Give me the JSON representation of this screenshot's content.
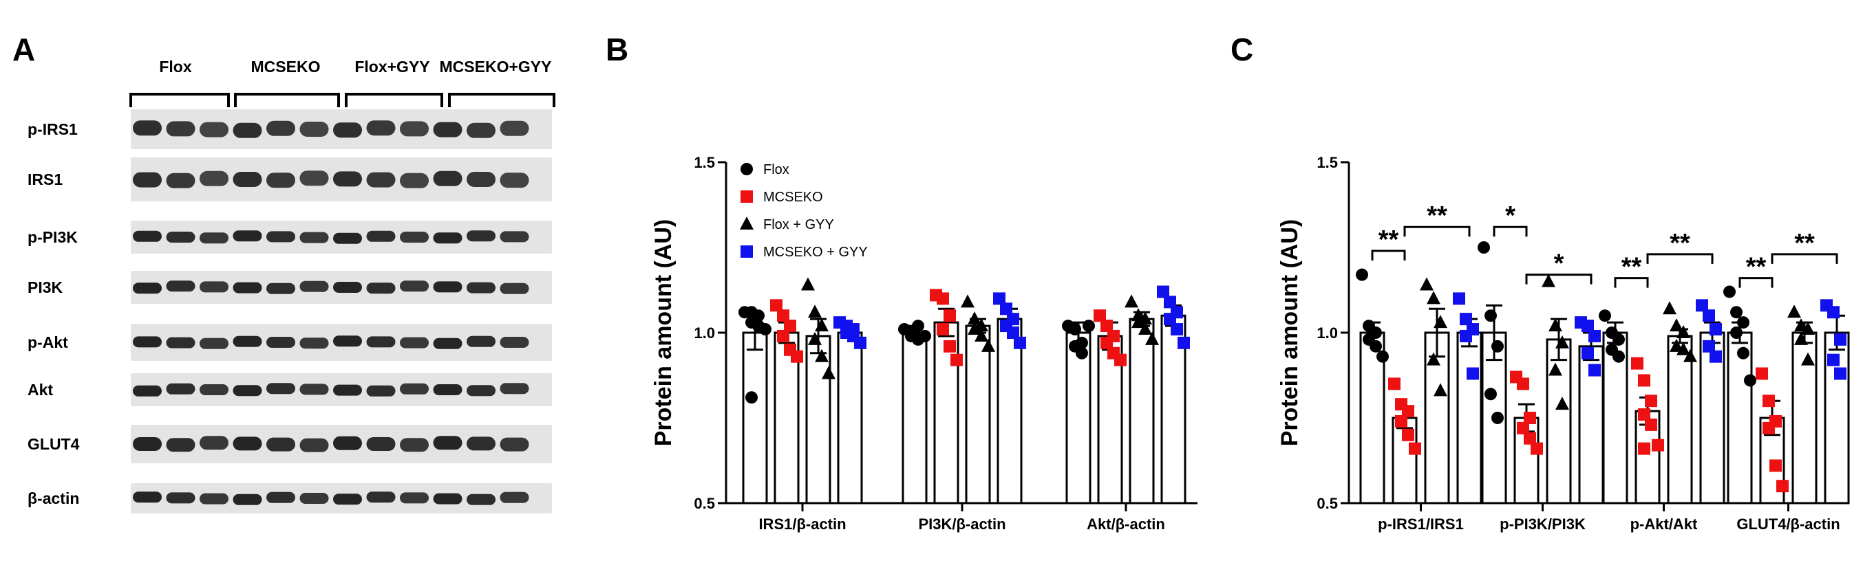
{
  "panel_a": {
    "letter": "A",
    "groups": [
      "Flox",
      "MCSEKO",
      "Flox+GYY",
      "MCSEKO+GYY"
    ],
    "rows": [
      {
        "label": "p-IRS1",
        "icon": "western-blot-band"
      },
      {
        "label": "IRS1",
        "icon": "western-blot-band"
      },
      {
        "label": "p-PI3K",
        "icon": "western-blot-band"
      },
      {
        "label": "PI3K",
        "icon": "western-blot-band"
      },
      {
        "label": "p-Akt",
        "icon": "western-blot-band"
      },
      {
        "label": "Akt",
        "icon": "western-blot-band"
      },
      {
        "label": "GLUT4",
        "icon": "western-blot-band"
      },
      {
        "label": "β-actin",
        "icon": "western-blot-band"
      }
    ]
  },
  "chart_data": [
    {
      "panel": "B",
      "type": "bar",
      "ylabel": "Protein amount (AU)",
      "ylim": [
        0.5,
        1.5
      ],
      "yticks": [
        "0.5",
        "1.0",
        "1.5"
      ],
      "categories": [
        "IRS1/β-actin",
        "PI3K/β-actin",
        "Akt/β-actin"
      ],
      "legend": {
        "placement": "top-left",
        "entries": [
          {
            "name": "Flox",
            "marker": "circle",
            "color": "#000000"
          },
          {
            "name": "MCSEKO",
            "marker": "square",
            "color": "#ee1111"
          },
          {
            "name": "Flox + GYY",
            "marker": "triangle",
            "color": "#000000"
          },
          {
            "name": "MCSEKO + GYY",
            "marker": "square",
            "color": "#1111ee"
          }
        ]
      },
      "series": [
        {
          "name": "Flox",
          "marker": "circle",
          "color": "#000000",
          "values": [
            1.0,
            1.0,
            1.0
          ],
          "sem": [
            0.05,
            0.02,
            0.03
          ],
          "points": [
            [
              1.06,
              1.06,
              1.05,
              1.03,
              1.02,
              1.01,
              0.81
            ],
            [
              1.01,
              1.0,
              0.98,
              0.99,
              1.02,
              0.99
            ],
            [
              1.02,
              1.01,
              0.97,
              0.96,
              0.94,
              1.02
            ]
          ]
        },
        {
          "name": "MCSEKO",
          "marker": "square",
          "color": "#ee1111",
          "values": [
            1.0,
            1.03,
            0.99
          ],
          "sem": [
            0.03,
            0.04,
            0.04
          ],
          "points": [
            [
              1.08,
              1.05,
              1.02,
              0.99,
              0.95,
              0.93
            ],
            [
              1.11,
              1.1,
              1.05,
              1.01,
              0.96,
              0.92
            ],
            [
              1.05,
              1.02,
              0.99,
              0.97,
              0.94,
              0.92
            ]
          ]
        },
        {
          "name": "Flox + GYY",
          "marker": "triangle",
          "color": "#000000",
          "values": [
            0.99,
            1.02,
            1.04
          ],
          "sem": [
            0.05,
            0.02,
            0.02
          ],
          "points": [
            [
              1.14,
              1.06,
              1.02,
              0.98,
              0.93,
              0.88
            ],
            [
              1.09,
              1.04,
              1.02,
              1.01,
              0.99,
              0.96
            ],
            [
              1.09,
              1.05,
              1.04,
              1.03,
              1.01,
              0.98
            ]
          ]
        },
        {
          "name": "MCSEKO + GYY",
          "marker": "square",
          "color": "#1111ee",
          "values": [
            1.0,
            1.04,
            1.05
          ],
          "sem": [
            0.01,
            0.03,
            0.03
          ],
          "points": [
            [
              1.03,
              1.02,
              1.01,
              1.0,
              0.99,
              0.97
            ],
            [
              1.1,
              1.07,
              1.04,
              1.02,
              1.0,
              0.97
            ],
            [
              1.12,
              1.09,
              1.06,
              1.04,
              1.01,
              0.97
            ]
          ]
        }
      ]
    },
    {
      "panel": "C",
      "type": "bar",
      "ylabel": "Protein amount (AU)",
      "ylim": [
        0.5,
        1.5
      ],
      "yticks": [
        "0.5",
        "1.0",
        "1.5"
      ],
      "categories": [
        "p-IRS1/IRS1",
        "p-PI3K/PI3K",
        "p-Akt/Akt",
        "GLUT4/β-actin"
      ],
      "series": [
        {
          "name": "Flox",
          "marker": "circle",
          "color": "#000000",
          "values": [
            1.0,
            1.0,
            1.0,
            1.0
          ],
          "sem": [
            0.03,
            0.08,
            0.03,
            0.03
          ],
          "points": [
            [
              1.17,
              1.02,
              1.0,
              0.98,
              0.96,
              0.93
            ],
            [
              1.25,
              1.05,
              0.96,
              0.82,
              0.75
            ],
            [
              1.05,
              1.0,
              0.98,
              0.95,
              0.93
            ],
            [
              1.12,
              1.06,
              1.03,
              1.0,
              0.94,
              0.86
            ]
          ]
        },
        {
          "name": "MCSEKO",
          "marker": "square",
          "color": "#ee1111",
          "values": [
            0.75,
            0.75,
            0.77,
            0.75
          ],
          "sem": [
            0.03,
            0.04,
            0.04,
            0.05
          ],
          "points": [
            [
              0.85,
              0.79,
              0.77,
              0.74,
              0.7,
              0.66
            ],
            [
              0.87,
              0.85,
              0.75,
              0.72,
              0.69,
              0.66
            ],
            [
              0.91,
              0.86,
              0.8,
              0.76,
              0.73,
              0.67,
              0.66
            ],
            [
              0.88,
              0.8,
              0.74,
              0.72,
              0.61,
              0.55
            ]
          ]
        },
        {
          "name": "Flox + GYY",
          "marker": "triangle",
          "color": "#000000",
          "values": [
            1.0,
            0.98,
            0.99,
            1.0
          ],
          "sem": [
            0.07,
            0.06,
            0.02,
            0.03
          ],
          "points": [
            [
              1.14,
              1.1,
              1.03,
              0.92,
              0.83
            ],
            [
              1.15,
              1.02,
              0.97,
              0.89,
              0.79
            ],
            [
              1.07,
              1.02,
              1.0,
              0.96,
              0.95,
              0.93
            ],
            [
              1.06,
              1.02,
              1.01,
              0.98,
              0.92
            ]
          ]
        },
        {
          "name": "MCSEKO + GYY",
          "marker": "square",
          "color": "#1111ee",
          "values": [
            1.0,
            0.96,
            1.0,
            1.0
          ],
          "sem": [
            0.04,
            0.04,
            0.03,
            0.05
          ],
          "points": [
            [
              1.1,
              1.04,
              1.01,
              0.99,
              0.88
            ],
            [
              1.03,
              1.02,
              0.99,
              0.94,
              0.89
            ],
            [
              1.08,
              1.05,
              1.01,
              0.96,
              0.93
            ],
            [
              1.08,
              1.06,
              0.98,
              0.92,
              0.88
            ]
          ]
        }
      ],
      "significance": [
        {
          "category": 0,
          "from": 0,
          "to": 1,
          "label": "**",
          "y": 1.24
        },
        {
          "category": 0,
          "from": 1,
          "to": 3,
          "label": "**",
          "y": 1.31
        },
        {
          "category": 1,
          "from": 0,
          "to": 1,
          "label": "*",
          "y": 1.31
        },
        {
          "category": 1,
          "from": 1,
          "to": 3,
          "label": "*",
          "y": 1.17
        },
        {
          "category": 2,
          "from": 0,
          "to": 1,
          "label": "**",
          "y": 1.16
        },
        {
          "category": 2,
          "from": 1,
          "to": 3,
          "label": "**",
          "y": 1.23
        },
        {
          "category": 3,
          "from": 0,
          "to": 1,
          "label": "**",
          "y": 1.16
        },
        {
          "category": 3,
          "from": 1,
          "to": 3,
          "label": "**",
          "y": 1.23
        }
      ]
    }
  ]
}
